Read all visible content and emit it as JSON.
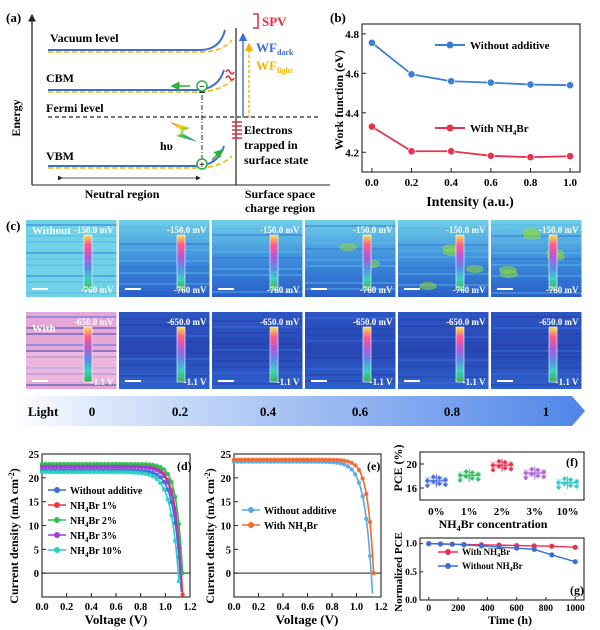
{
  "panel_a": {
    "label": "(a)",
    "y_axis": "Energy",
    "vacuum": "Vacuum level",
    "cbm": "CBM",
    "fermi": "Fermi level",
    "vbm": "VBM",
    "hv": "hυ",
    "spv": "SPV",
    "wf_dark": "WF",
    "wf_dark_sub": "dark",
    "wf_light": "WF",
    "wf_light_sub": "light",
    "electrons_1": "Electrons",
    "electrons_2": "trapped in",
    "electrons_3": "surface state",
    "neutral": "Neutral region",
    "surface_1": "Surface space",
    "surface_2": "charge region",
    "minus": "−",
    "plus": "+",
    "colors": {
      "band_blue": "#3a6fd6",
      "band_yellow": "#f5b400",
      "spv_red": "#e8283c"
    }
  },
  "chart_b": {
    "label": "(b)",
    "type": "line",
    "xlabel": "Intensity (a.u.)",
    "ylabel": "Work function (eV)",
    "xlim": [
      -0.05,
      1.05
    ],
    "ylim": [
      4.1,
      4.85
    ],
    "xticks": [
      "0.0",
      "0.2",
      "0.4",
      "0.6",
      "0.8",
      "1.0"
    ],
    "yticks": [
      "4.2",
      "4.4",
      "4.6",
      "4.8"
    ],
    "series": [
      {
        "name": "Without additive",
        "color": "#3b7fd9",
        "x": [
          0,
          0.2,
          0.4,
          0.6,
          0.8,
          1.0
        ],
        "y": [
          4.755,
          4.595,
          4.56,
          4.553,
          4.543,
          4.54
        ]
      },
      {
        "name_main": "With NH",
        "name_sub": "4",
        "name_tail": "Br",
        "color": "#e8334f",
        "x": [
          0,
          0.2,
          0.4,
          0.6,
          0.8,
          1.0
        ],
        "y": [
          4.33,
          4.205,
          4.205,
          4.182,
          4.175,
          4.18
        ]
      }
    ]
  },
  "panel_c": {
    "label": "(c)",
    "row_without": "Without",
    "row_with": "With",
    "top_max": "-150.0 mV",
    "top_min": "-760 mV",
    "bottom_max": "-650.0 mV",
    "bottom_min": "-1.1 V",
    "light_label": "Light",
    "light_values": [
      "0",
      "0.2",
      "0.4",
      "0.6",
      "0.8",
      "1"
    ]
  },
  "chart_d": {
    "label": "(d)",
    "type": "line",
    "xlabel": "Voltage (V)",
    "ylabel": "Current density (mA cm",
    "ylabel_sup": "-2",
    "ylabel_tail": ")",
    "xlim": [
      0,
      1.2
    ],
    "ylim": [
      -5,
      25
    ],
    "xticks": [
      "0.0",
      "0.2",
      "0.4",
      "0.6",
      "0.8",
      "1.0",
      "1.2"
    ],
    "yticks": [
      "0",
      "5",
      "10",
      "15",
      "20",
      "25"
    ],
    "series": [
      {
        "name": "Without additive",
        "color": "#3a6fd6",
        "jsc": 21.6,
        "voc": 1.12,
        "n": 0.06
      },
      {
        "name": "NH",
        "sub": "4",
        "tail": "Br 1%",
        "color": "#e83a3a",
        "jsc": 22.6,
        "voc": 1.13,
        "n": 0.055
      },
      {
        "name": "NH",
        "sub": "4",
        "tail": "Br 2%",
        "color": "#2fbf4f",
        "jsc": 22.9,
        "voc": 1.14,
        "n": 0.05
      },
      {
        "name": "NH",
        "sub": "4",
        "tail": "Br 3%",
        "color": "#a43bd6",
        "jsc": 22.3,
        "voc": 1.125,
        "n": 0.055
      },
      {
        "name": "NH",
        "sub": "4",
        "tail": "Br 10%",
        "color": "#28d0c0",
        "jsc": 21.2,
        "voc": 1.105,
        "n": 0.065
      }
    ]
  },
  "chart_e": {
    "label": "(e)",
    "type": "line",
    "xlabel": "Voltage (V)",
    "ylabel": "Current density (mA cm",
    "ylabel_sup": "-2",
    "ylabel_tail": ")",
    "xlim": [
      0,
      1.2
    ],
    "ylim": [
      -5,
      25
    ],
    "xticks": [
      "0.0",
      "0.2",
      "0.4",
      "0.6",
      "0.8",
      "1.0",
      "1.2"
    ],
    "yticks": [
      "0",
      "5",
      "10",
      "15",
      "20",
      "25"
    ],
    "series": [
      {
        "name": "Without additive",
        "color": "#5aa8e8",
        "jsc": 23.4,
        "voc": 1.12,
        "n": 0.06
      },
      {
        "name": "With NH",
        "sub": "4",
        "tail": "Br",
        "color": "#f26a2e",
        "jsc": 23.8,
        "voc": 1.14,
        "n": 0.05
      }
    ]
  },
  "chart_f": {
    "label": "(f)",
    "type": "box",
    "ylabel": "PCE (%)",
    "xlabel": "NH",
    "xlabel_sub": "4",
    "xlabel_tail": "Br concentration",
    "ylim": [
      14,
      22
    ],
    "yticks": [
      "16",
      "20"
    ],
    "categories": [
      "0%",
      "1%",
      "2%",
      "3%",
      "10%"
    ],
    "colors": [
      "#4a6fe0",
      "#39c06a",
      "#e8334f",
      "#b26ad9",
      "#3cc8c8"
    ],
    "medians": [
      17.2,
      18.1,
      19.8,
      18.5,
      16.9
    ]
  },
  "chart_g": {
    "label": "(g)",
    "type": "line",
    "ylabel": "Normalized PCE",
    "xlabel": "Time (h)",
    "xlim": [
      -60,
      1060
    ],
    "ylim": [
      0,
      1.1
    ],
    "xticks": [
      "0",
      "200",
      "400",
      "600",
      "800",
      "1000"
    ],
    "yticks": [
      "0.0",
      "0.5",
      "1.0"
    ],
    "series": [
      {
        "name": "With NH",
        "sub": "4",
        "tail": "Br",
        "color": "#e8334f",
        "x": [
          0,
          80,
          160,
          240,
          360,
          480,
          600,
          720,
          840,
          1000
        ],
        "y": [
          1.0,
          0.995,
          0.99,
          0.985,
          0.98,
          0.975,
          0.965,
          0.96,
          0.955,
          0.935
        ]
      },
      {
        "name": "Without NH",
        "sub": "4",
        "tail": "Br",
        "color": "#3a6fd6",
        "x": [
          0,
          80,
          160,
          240,
          360,
          480,
          600,
          720,
          840,
          1000
        ],
        "y": [
          1.0,
          0.995,
          0.99,
          0.98,
          0.96,
          0.94,
          0.92,
          0.9,
          0.8,
          0.68
        ]
      }
    ]
  }
}
